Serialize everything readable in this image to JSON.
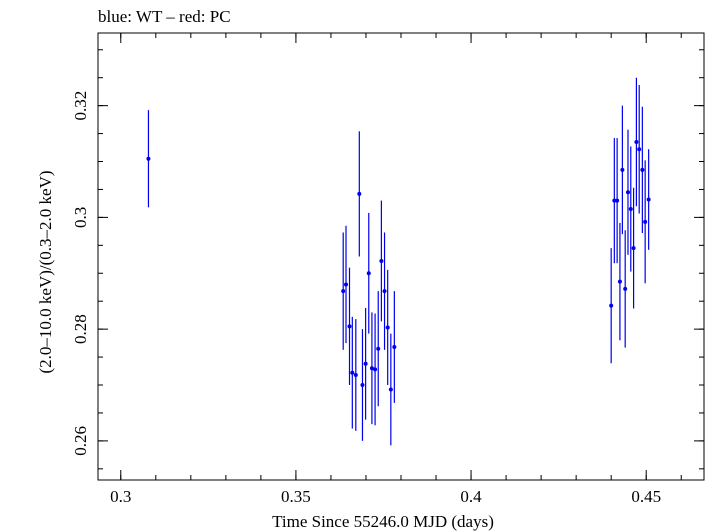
{
  "chart_data": {
    "type": "scatter",
    "title": "blue: WT – red: PC",
    "xlabel": "Time Since 55246.0 MJD (days)",
    "ylabel": "(2.0–10.0 keV)/(0.3–2.0 keV)",
    "xlim": [
      0.2935,
      0.4665
    ],
    "ylim": [
      0.253,
      0.333
    ],
    "x_ticks": [
      0.3,
      0.35,
      0.4,
      0.45
    ],
    "x_tick_labels": [
      "0.3",
      "0.35",
      "0.4",
      "0.45"
    ],
    "y_ticks": [
      0.26,
      0.28,
      0.3,
      0.32
    ],
    "y_tick_labels": [
      "0.26",
      "0.28",
      "0.3",
      "0.32"
    ],
    "grid": false,
    "series": [
      {
        "color": "#0000ee",
        "points": [
          {
            "x": 0.3079,
            "y": 0.3105,
            "err": 0.0087
          },
          {
            "x": 0.3635,
            "y": 0.2868,
            "err": 0.0105
          },
          {
            "x": 0.3643,
            "y": 0.288,
            "err": 0.0105
          },
          {
            "x": 0.3653,
            "y": 0.2805,
            "err": 0.0105
          },
          {
            "x": 0.3661,
            "y": 0.2722,
            "err": 0.01
          },
          {
            "x": 0.3671,
            "y": 0.2718,
            "err": 0.01
          },
          {
            "x": 0.3681,
            "y": 0.3042,
            "err": 0.0112
          },
          {
            "x": 0.369,
            "y": 0.27,
            "err": 0.01
          },
          {
            "x": 0.3699,
            "y": 0.2738,
            "err": 0.01
          },
          {
            "x": 0.3708,
            "y": 0.29,
            "err": 0.0108
          },
          {
            "x": 0.3717,
            "y": 0.273,
            "err": 0.01
          },
          {
            "x": 0.3726,
            "y": 0.2728,
            "err": 0.01
          },
          {
            "x": 0.3735,
            "y": 0.2765,
            "err": 0.0103
          },
          {
            "x": 0.3744,
            "y": 0.2922,
            "err": 0.0108
          },
          {
            "x": 0.3753,
            "y": 0.2868,
            "err": 0.0105
          },
          {
            "x": 0.3762,
            "y": 0.2803,
            "err": 0.0103
          },
          {
            "x": 0.3771,
            "y": 0.2692,
            "err": 0.01
          },
          {
            "x": 0.3781,
            "y": 0.2768,
            "err": 0.01
          },
          {
            "x": 0.44,
            "y": 0.2842,
            "err": 0.0103
          },
          {
            "x": 0.4409,
            "y": 0.303,
            "err": 0.0112
          },
          {
            "x": 0.4417,
            "y": 0.303,
            "err": 0.0112
          },
          {
            "x": 0.4425,
            "y": 0.2885,
            "err": 0.0105
          },
          {
            "x": 0.4432,
            "y": 0.3085,
            "err": 0.0115
          },
          {
            "x": 0.444,
            "y": 0.2872,
            "err": 0.0105
          },
          {
            "x": 0.4448,
            "y": 0.3045,
            "err": 0.0112
          },
          {
            "x": 0.4456,
            "y": 0.3015,
            "err": 0.0112
          },
          {
            "x": 0.4464,
            "y": 0.2945,
            "err": 0.0108
          },
          {
            "x": 0.4472,
            "y": 0.3135,
            "err": 0.0115
          },
          {
            "x": 0.448,
            "y": 0.3122,
            "err": 0.0115
          },
          {
            "x": 0.4489,
            "y": 0.3085,
            "err": 0.0113
          },
          {
            "x": 0.4497,
            "y": 0.2992,
            "err": 0.011
          },
          {
            "x": 0.4507,
            "y": 0.3032,
            "err": 0.009
          }
        ]
      }
    ]
  }
}
